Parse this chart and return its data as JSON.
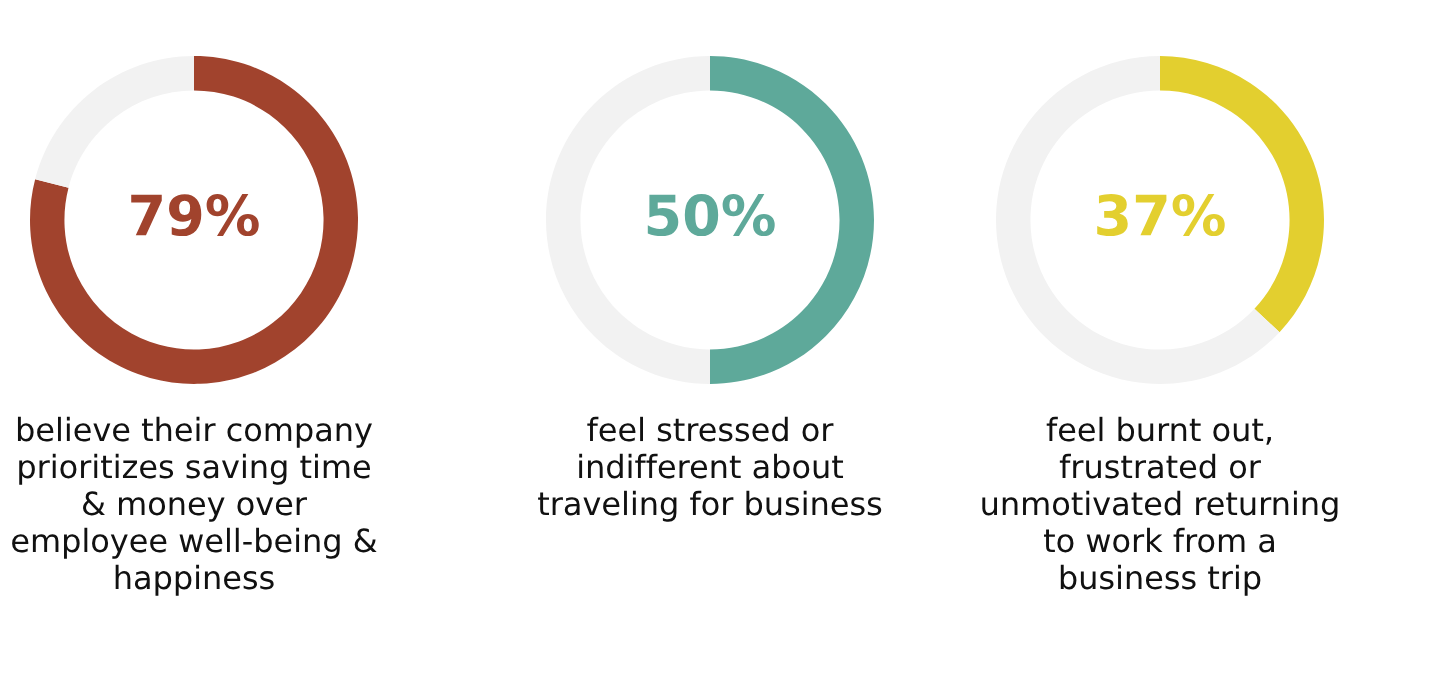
{
  "chart_data": [
    {
      "type": "donut",
      "categories": [
        null,
        null
      ],
      "values": [
        79,
        21
      ],
      "colors": [
        "#a1432d",
        "#f2f2f2"
      ],
      "value_labels": [
        "79%",
        null
      ],
      "annotations": [
        "believe their company\nprioritizes saving time\n& money over\nemployee well-being &\nhappiness"
      ]
    },
    {
      "type": "donut",
      "categories": [
        null,
        null
      ],
      "values": [
        50,
        50
      ],
      "colors": [
        "#5ea99a",
        "#f2f2f2"
      ],
      "value_labels": [
        "50%",
        null
      ],
      "annotations": [
        "feel stressed or\nindifferent about\ntraveling for business"
      ]
    },
    {
      "type": "donut",
      "categories": [
        null,
        null
      ],
      "values": [
        37,
        63
      ],
      "colors": [
        "#e3cf2f",
        "#f2f2f2"
      ],
      "value_labels": [
        "37%",
        null
      ],
      "annotations": [
        "feel burnt out,\nfrustrated or\nunmotivated returning\nto work from a\nbusiness trip"
      ]
    }
  ]
}
